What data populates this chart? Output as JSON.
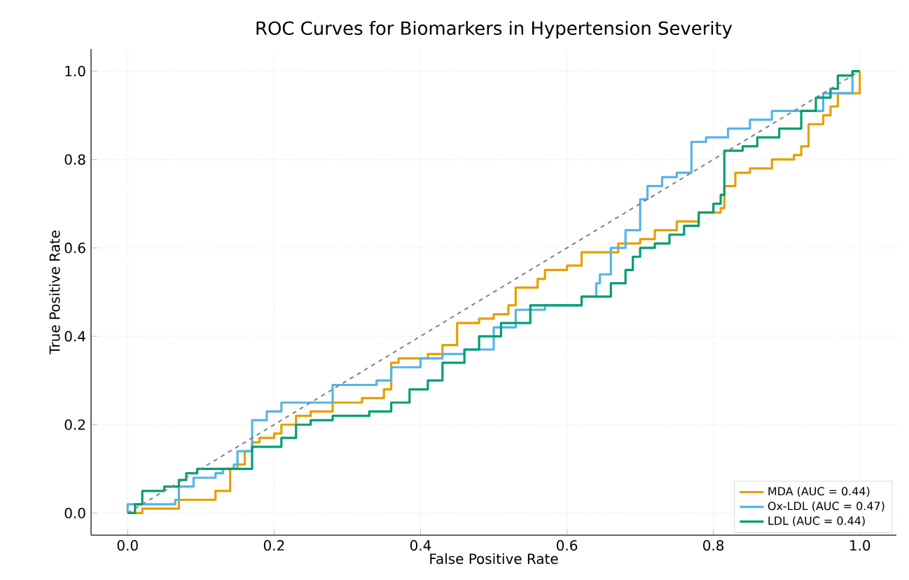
{
  "chart_data": {
    "type": "step",
    "title": "ROC Curves for Biomarkers in Hypertension Severity",
    "xlabel": "False Positive Rate",
    "ylabel": "True Positive Rate",
    "xlim": [
      -0.05,
      1.05
    ],
    "ylim": [
      -0.05,
      1.05
    ],
    "xticks": [
      {
        "value": 0,
        "label": "0.0"
      },
      {
        "value": 0.2,
        "label": "0.2"
      },
      {
        "value": 0.4,
        "label": "0.4"
      },
      {
        "value": 0.6,
        "label": "0.6"
      },
      {
        "value": 0.8,
        "label": "0.8"
      },
      {
        "value": 1,
        "label": "1.0"
      }
    ],
    "yticks": [
      {
        "value": 0,
        "label": "0.0"
      },
      {
        "value": 0.2,
        "label": "0.2"
      },
      {
        "value": 0.4,
        "label": "0.4"
      },
      {
        "value": 0.6,
        "label": "0.6"
      },
      {
        "value": 0.8,
        "label": "0.8"
      },
      {
        "value": 1,
        "label": "1.0"
      }
    ],
    "grid": true,
    "legend": "bottom right",
    "series": [
      {
        "name": "MDA (AUC = 0.44)",
        "color": "#e69f00",
        "x": [
          0,
          0.02,
          0.07,
          0.12,
          0.14,
          0.15,
          0.16,
          0.17,
          0.18,
          0.2,
          0.21,
          0.23,
          0.25,
          0.28,
          0.32,
          0.35,
          0.36,
          0.37,
          0.41,
          0.43,
          0.45,
          0.48,
          0.5,
          0.52,
          0.53,
          0.56,
          0.57,
          0.6,
          0.62,
          0.67,
          0.7,
          0.72,
          0.75,
          0.78,
          0.81,
          0.815,
          0.83,
          0.85,
          0.88,
          0.91,
          0.92,
          0.93,
          0.95,
          0.96,
          0.97,
          1.0,
          1.0
        ],
        "values": [
          0,
          0.01,
          0.03,
          0.05,
          0.1,
          0.11,
          0.14,
          0.16,
          0.17,
          0.18,
          0.2,
          0.22,
          0.23,
          0.25,
          0.26,
          0.28,
          0.34,
          0.35,
          0.36,
          0.38,
          0.43,
          0.44,
          0.45,
          0.47,
          0.51,
          0.53,
          0.55,
          0.56,
          0.59,
          0.61,
          0.62,
          0.64,
          0.66,
          0.68,
          0.69,
          0.74,
          0.77,
          0.78,
          0.8,
          0.81,
          0.83,
          0.88,
          0.9,
          0.92,
          0.95,
          0.95,
          1.0
        ]
      },
      {
        "name": "Ox-LDL (AUC = 0.47)",
        "color": "#56b4e9",
        "x": [
          0,
          0,
          0.065,
          0.07,
          0.09,
          0.12,
          0.13,
          0.145,
          0.15,
          0.17,
          0.19,
          0.21,
          0.28,
          0.34,
          0.36,
          0.4,
          0.43,
          0.46,
          0.5,
          0.53,
          0.57,
          0.62,
          0.64,
          0.645,
          0.66,
          0.68,
          0.7,
          0.71,
          0.73,
          0.75,
          0.77,
          0.79,
          0.82,
          0.85,
          0.88,
          0.95,
          0.99,
          1.0
        ],
        "values": [
          0,
          0.02,
          0.03,
          0.06,
          0.08,
          0.09,
          0.1,
          0.11,
          0.14,
          0.21,
          0.23,
          0.25,
          0.29,
          0.3,
          0.33,
          0.35,
          0.36,
          0.37,
          0.42,
          0.46,
          0.47,
          0.49,
          0.52,
          0.54,
          0.6,
          0.64,
          0.71,
          0.74,
          0.76,
          0.77,
          0.84,
          0.85,
          0.87,
          0.89,
          0.91,
          0.95,
          1.0,
          1.0
        ]
      },
      {
        "name": "LDL (AUC = 0.44)",
        "color": "#009e73",
        "x": [
          0,
          0.01,
          0.02,
          0.05,
          0.07,
          0.08,
          0.095,
          0.17,
          0.21,
          0.23,
          0.25,
          0.28,
          0.33,
          0.36,
          0.385,
          0.41,
          0.43,
          0.46,
          0.48,
          0.51,
          0.55,
          0.62,
          0.66,
          0.68,
          0.69,
          0.7,
          0.72,
          0.74,
          0.76,
          0.78,
          0.8,
          0.81,
          0.815,
          0.84,
          0.86,
          0.89,
          0.92,
          0.94,
          0.96,
          0.97,
          0.99,
          1.0
        ],
        "values": [
          0,
          0.02,
          0.05,
          0.06,
          0.075,
          0.09,
          0.1,
          0.15,
          0.17,
          0.2,
          0.21,
          0.22,
          0.23,
          0.25,
          0.28,
          0.3,
          0.34,
          0.37,
          0.4,
          0.43,
          0.47,
          0.49,
          0.52,
          0.55,
          0.58,
          0.6,
          0.61,
          0.63,
          0.65,
          0.68,
          0.7,
          0.72,
          0.82,
          0.83,
          0.85,
          0.87,
          0.91,
          0.94,
          0.96,
          0.99,
          1.0,
          1.0
        ]
      },
      {
        "type": "line",
        "line_style": "dashed",
        "color": "#808080",
        "x": [
          0,
          1
        ],
        "values": [
          0,
          1
        ]
      }
    ]
  }
}
